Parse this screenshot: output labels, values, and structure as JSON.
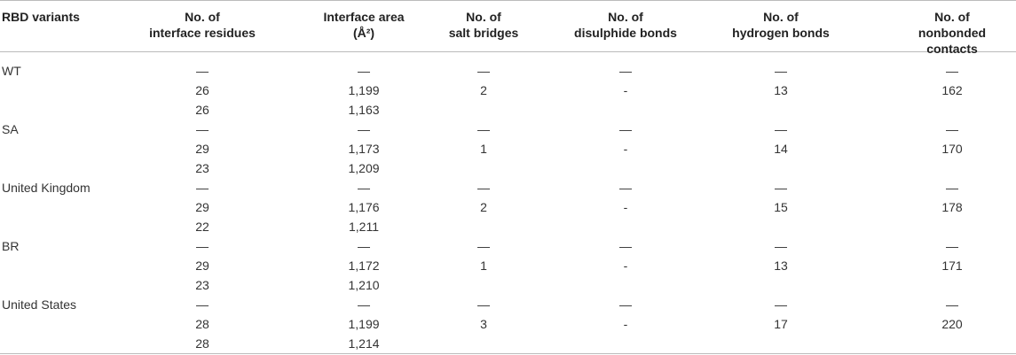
{
  "table": {
    "header": [
      "RBD variants",
      "No. of\ninterface residues",
      "Interface area\n(Å²)",
      "No. of\nsalt bridges",
      "No. of\ndisulphide bonds",
      "No. of\nhydrogen bonds",
      "No. of\nnonbonded contacts"
    ],
    "rows": [
      [
        "WT",
        "—",
        "—",
        "—",
        "—",
        "—",
        "—"
      ],
      [
        null,
        "26",
        "1,199",
        "2",
        "-",
        "13",
        "162"
      ],
      [
        null,
        "26",
        "1,163",
        null,
        null,
        null,
        null
      ],
      [
        "SA",
        "—",
        "—",
        "—",
        "—",
        "—",
        "—"
      ],
      [
        null,
        "29",
        "1,173",
        "1",
        "-",
        "14",
        "170"
      ],
      [
        null,
        "23",
        "1,209",
        null,
        null,
        null,
        null
      ],
      [
        "United Kingdom",
        "—",
        "—",
        "—",
        "—",
        "—",
        "—"
      ],
      [
        null,
        "29",
        "1,176",
        "2",
        "-",
        "15",
        "178"
      ],
      [
        null,
        "22",
        "1,211",
        null,
        null,
        null,
        null
      ],
      [
        "BR",
        "—",
        "—",
        "—",
        "—",
        "—",
        "—"
      ],
      [
        null,
        "29",
        "1,172",
        "1",
        "-",
        "13",
        "171"
      ],
      [
        null,
        "23",
        "1,210",
        null,
        null,
        null,
        null
      ],
      [
        "United States",
        "—",
        "—",
        "—",
        "—",
        "—",
        "—"
      ],
      [
        null,
        "28",
        "1,199",
        "3",
        "-",
        "17",
        "220"
      ],
      [
        null,
        "28",
        "1,214",
        null,
        null,
        null,
        null
      ]
    ]
  }
}
